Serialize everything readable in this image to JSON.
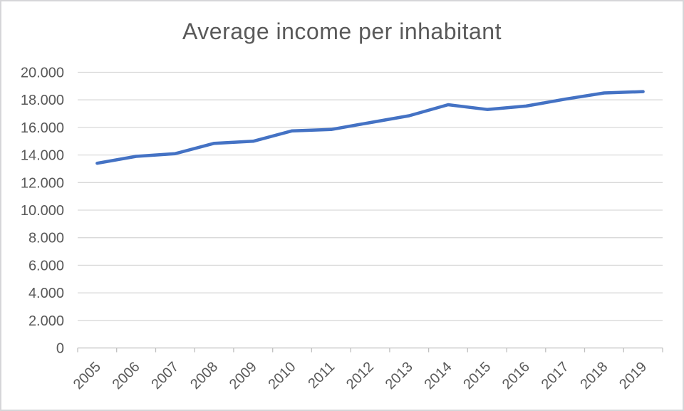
{
  "chart_data": {
    "type": "line",
    "title": "Average income per inhabitant",
    "categories": [
      "2005",
      "2006",
      "2007",
      "2008",
      "2009",
      "2010",
      "2011",
      "2012",
      "2013",
      "2014",
      "2015",
      "2016",
      "2017",
      "2018",
      "2019"
    ],
    "series": [
      {
        "values": [
          13400,
          13900,
          14100,
          14850,
          15000,
          15750,
          15850,
          16350,
          16850,
          17650,
          17300,
          17550,
          18050,
          18500,
          18600
        ],
        "color": "#4472C4",
        "stroke_width": 4.5
      }
    ],
    "xlabel": "",
    "ylabel": "",
    "ylim": [
      0,
      20000
    ],
    "ytick_step": 2000,
    "ytick_labels": [
      "0",
      "2.000",
      "4.000",
      "6.000",
      "8.000",
      "10.000",
      "12.000",
      "14.000",
      "16.000",
      "18.000",
      "20.000"
    ],
    "x_label_rotation": -45,
    "grid": "horizontal",
    "legend": "none",
    "colors": {
      "title": "#595959",
      "tick_label": "#595959",
      "gridline": "#d9d9d9",
      "axis": "#bfbfbf",
      "background": "#ffffff"
    }
  }
}
